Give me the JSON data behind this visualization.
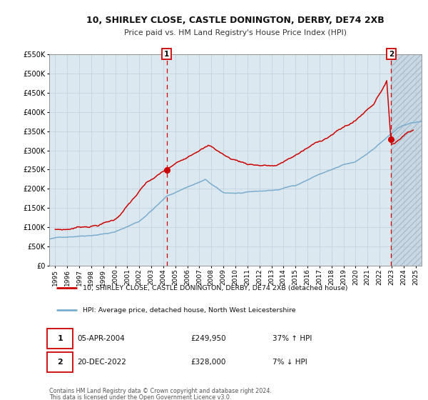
{
  "title": "10, SHIRLEY CLOSE, CASTLE DONINGTON, DERBY, DE74 2XB",
  "subtitle": "Price paid vs. HM Land Registry's House Price Index (HPI)",
  "legend_line1": "10, SHIRLEY CLOSE, CASTLE DONINGTON, DERBY, DE74 2XB (detached house)",
  "legend_line2": "HPI: Average price, detached house, North West Leicestershire",
  "annotation1_date": "05-APR-2004",
  "annotation1_price": "£249,950",
  "annotation1_hpi": "37% ↑ HPI",
  "annotation2_date": "20-DEC-2022",
  "annotation2_price": "£328,000",
  "annotation2_hpi": "7% ↓ HPI",
  "footer1": "Contains HM Land Registry data © Crown copyright and database right 2024.",
  "footer2": "This data is licensed under the Open Government Licence v3.0.",
  "property_color": "#cc0000",
  "hpi_color": "#7aadcf",
  "plot_bg": "#dce8f0",
  "hatch_bg": "#c8d8e4",
  "marker_date1_year": 2004.27,
  "marker_date2_year": 2022.97,
  "marker1_value": 249950,
  "marker2_value": 328000,
  "ylim": [
    0,
    550000
  ],
  "xlim_start": 1994.5,
  "xlim_end": 2025.5,
  "ytick_values": [
    0,
    50000,
    100000,
    150000,
    200000,
    250000,
    300000,
    350000,
    400000,
    450000,
    500000,
    550000
  ],
  "ytick_labels": [
    "£0",
    "£50K",
    "£100K",
    "£150K",
    "£200K",
    "£250K",
    "£300K",
    "£350K",
    "£400K",
    "£450K",
    "£500K",
    "£550K"
  ],
  "xtick_years": [
    1995,
    1996,
    1997,
    1998,
    1999,
    2000,
    2001,
    2002,
    2003,
    2004,
    2005,
    2006,
    2007,
    2008,
    2009,
    2010,
    2011,
    2012,
    2013,
    2014,
    2015,
    2016,
    2017,
    2018,
    2019,
    2020,
    2021,
    2022,
    2023,
    2024,
    2025
  ]
}
